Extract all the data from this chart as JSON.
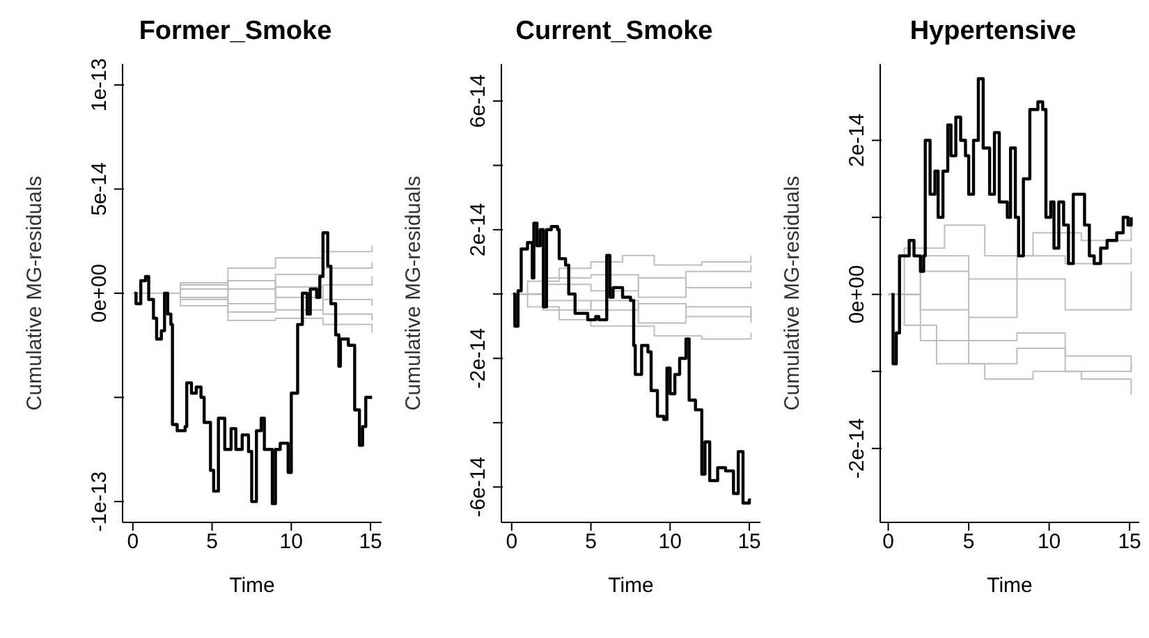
{
  "chart_data": [
    {
      "type": "step",
      "title": "Former_Smoke",
      "xlabel": "Time",
      "ylabel": "Cumulative MG-residuals",
      "xlim": [
        -0.65,
        15.7
      ],
      "xticks": [
        0,
        5,
        10,
        15
      ],
      "ylim": [
        -1.1e-13,
        1.1e-13
      ],
      "yticks": [
        {
          "value": 1e-13,
          "label": "1e-13"
        },
        {
          "value": 5e-14,
          "label": "5e-14"
        },
        {
          "value": 0,
          "label": "0e+00"
        },
        {
          "value": -5e-14,
          "label": null
        },
        {
          "value": -1e-13,
          "label": "-1e-13"
        }
      ],
      "series": [
        {
          "color": "#bebebe",
          "x": [
            0,
            3,
            6,
            9,
            12,
            15.1
          ],
          "values": [
            0,
            5e-15,
            1.2e-14,
            1.7e-14,
            2e-14,
            2.3e-14
          ]
        },
        {
          "color": "#bebebe",
          "x": [
            0,
            3,
            6,
            9,
            12,
            15.1
          ],
          "values": [
            0,
            -6e-15,
            -1.3e-14,
            -1.2e-14,
            -1.5e-14,
            -1.9e-14
          ]
        },
        {
          "color": "#bebebe",
          "x": [
            0,
            3,
            6,
            9,
            12,
            15.1
          ],
          "values": [
            0,
            2e-15,
            6e-15,
            -2e-15,
            4e-15,
            8e-15
          ]
        },
        {
          "color": "#bebebe",
          "x": [
            0,
            3,
            6,
            9,
            12,
            15.1
          ],
          "values": [
            0,
            -3e-15,
            2e-15,
            9e-15,
            1.2e-14,
            1.5e-14
          ]
        },
        {
          "color": "#bebebe",
          "x": [
            0,
            3,
            6,
            9,
            12,
            15.1
          ],
          "values": [
            0,
            4e-15,
            -5e-15,
            -8e-15,
            -3e-15,
            -6e-15
          ]
        },
        {
          "color": "#bebebe",
          "x": [
            0,
            3,
            6,
            9,
            12,
            15.1
          ],
          "values": [
            0,
            -2e-15,
            -9e-15,
            3e-15,
            -1e-14,
            -1.3e-14
          ]
        },
        {
          "color": "#000000",
          "x": [
            0.1,
            0.2,
            0.5,
            0.8,
            1.0,
            1.3,
            1.5,
            1.8,
            2.0,
            2.2,
            2.4,
            2.5,
            2.8,
            3.3,
            3.4,
            3.7,
            4.0,
            4.3,
            4.5,
            4.9,
            5.1,
            5.4,
            5.8,
            6.2,
            6.5,
            6.9,
            7.3,
            7.5,
            7.8,
            8.1,
            8.3,
            8.8,
            9.0,
            9.3,
            9.8,
            10.0,
            10.4,
            10.7,
            11.0,
            11.2,
            11.6,
            11.8,
            12.0,
            12.3,
            12.5,
            12.8,
            13.0,
            13.1,
            13.6,
            14.0,
            14.3,
            14.5,
            14.7,
            15.1
          ],
          "values": [
            0,
            -5e-15,
            6e-15,
            8e-15,
            -3e-15,
            -1.2e-14,
            -2.2e-14,
            -1.8e-14,
            0,
            -1e-14,
            -1.5e-14,
            -6.3e-14,
            -6.6e-14,
            -6.4e-14,
            -4.3e-14,
            -4.8e-14,
            -4.5e-14,
            -5e-14,
            -6.2e-14,
            -8.5e-14,
            -9.5e-14,
            -6e-14,
            -7.5e-14,
            -6.5e-14,
            -7.5e-14,
            -6.8e-14,
            -7.6e-14,
            -1e-13,
            -6.6e-14,
            -6e-14,
            -7.5e-14,
            -1.01e-13,
            -7.5e-14,
            -7.2e-14,
            -8.6e-14,
            -4.8e-14,
            -1.5e-14,
            0,
            -1e-14,
            2e-15,
            -2e-15,
            8e-15,
            2.9e-14,
            1.3e-14,
            -5e-15,
            -2e-14,
            -3.5e-14,
            -2.2e-14,
            -2.5e-14,
            -5.6e-14,
            -7.3e-14,
            -6.4e-14,
            -5e-14,
            -5e-14
          ]
        }
      ]
    },
    {
      "type": "step",
      "title": "Current_Smoke",
      "xlabel": "Time",
      "ylabel": "Cumulative MG-residuals",
      "xlim": [
        -0.65,
        15.7
      ],
      "xticks": [
        0,
        5,
        10,
        15
      ],
      "ylim": [
        -7.1e-14,
        7.15e-14
      ],
      "yticks": [
        {
          "value": 6e-14,
          "label": "6e-14"
        },
        {
          "value": 4e-14,
          "label": null
        },
        {
          "value": 2e-14,
          "label": "2e-14"
        },
        {
          "value": 0,
          "label": null
        },
        {
          "value": -2e-14,
          "label": "-2e-14"
        },
        {
          "value": -4e-14,
          "label": null
        },
        {
          "value": -6e-14,
          "label": "-6e-14"
        }
      ],
      "series": [
        {
          "color": "#bebebe",
          "x": [
            0,
            1,
            3,
            5,
            7,
            9,
            12,
            15.1
          ],
          "values": [
            0,
            4e-15,
            8e-15,
            1e-14,
            1.2e-14,
            9e-15,
            1e-14,
            1.2e-14
          ]
        },
        {
          "color": "#bebebe",
          "x": [
            0,
            1,
            3,
            5,
            7,
            9,
            12,
            15.1
          ],
          "values": [
            0,
            -4e-15,
            -8e-15,
            -1e-14,
            -1e-14,
            -1.3e-14,
            -1.4e-14,
            -1.2e-14
          ]
        },
        {
          "color": "#bebebe",
          "x": [
            0,
            2,
            5,
            8,
            11,
            15.1
          ],
          "values": [
            0,
            3e-15,
            1e-15,
            5e-15,
            2e-15,
            4e-15
          ]
        },
        {
          "color": "#bebebe",
          "x": [
            0,
            2,
            5,
            8,
            11,
            15.1
          ],
          "values": [
            0,
            -2e-15,
            -5e-15,
            -3e-15,
            -7e-15,
            -5e-15
          ]
        },
        {
          "color": "#bebebe",
          "x": [
            0,
            2,
            5,
            8,
            11,
            15.1
          ],
          "values": [
            0,
            5e-15,
            6e-15,
            -1e-15,
            7e-15,
            9e-15
          ]
        },
        {
          "color": "#bebebe",
          "x": [
            0,
            2,
            5,
            8,
            11,
            15.1
          ],
          "values": [
            0,
            -5e-15,
            -2e-15,
            -9e-15,
            -4e-15,
            -9e-15
          ]
        },
        {
          "color": "#000000",
          "x": [
            0.1,
            0.2,
            0.4,
            0.6,
            1.0,
            1.3,
            1.4,
            1.6,
            1.8,
            2.0,
            2.2,
            2.5,
            2.9,
            3.0,
            3.4,
            3.6,
            4.0,
            4.8,
            5.3,
            5.5,
            6.0,
            6.2,
            6.4,
            7.0,
            7.5,
            7.7,
            7.8,
            8.2,
            8.6,
            8.8,
            9.2,
            9.6,
            9.8,
            10.0,
            10.3,
            10.6,
            11.0,
            11.2,
            11.6,
            12.0,
            12.2,
            12.5,
            13.0,
            13.5,
            14.0,
            14.3,
            14.6,
            15.0,
            15.1
          ],
          "values": [
            0,
            -1e-14,
            1e-15,
            1.4e-14,
            1.6e-14,
            5e-15,
            2.2e-14,
            1.5e-14,
            2e-14,
            -4e-15,
            2e-14,
            2.1e-14,
            2e-14,
            1.1e-14,
            9e-15,
            0,
            -6e-15,
            -8e-15,
            -7e-15,
            -8e-15,
            1.2e-14,
            -1e-15,
            2e-15,
            -1e-15,
            -2e-15,
            -1.6e-14,
            -2.5e-14,
            -1.6e-14,
            -1.8e-14,
            -3e-14,
            -3.8e-14,
            -3.9e-14,
            -2.3e-14,
            -3.1e-14,
            -2.5e-14,
            -2e-14,
            -1.4e-14,
            -3.3e-14,
            -3.6e-14,
            -5.6e-14,
            -4.6e-14,
            -5.8e-14,
            -5.4e-14,
            -5.5e-14,
            -6.2e-14,
            -4.9e-14,
            -6.5e-14,
            -6.4e-14,
            -6.4e-14
          ]
        }
      ]
    },
    {
      "type": "step",
      "title": "Hypertensive",
      "xlabel": "Time",
      "ylabel": "Cumulative MG-residuals",
      "xlim": [
        -0.5,
        15.6
      ],
      "xticks": [
        0,
        5,
        10,
        15
      ],
      "ylim": [
        -2.96e-14,
        2.99e-14
      ],
      "yticks": [
        {
          "value": 2e-14,
          "label": "2e-14"
        },
        {
          "value": 1e-14,
          "label": null
        },
        {
          "value": 0,
          "label": "0e+00"
        },
        {
          "value": -1e-14,
          "label": null
        },
        {
          "value": -2e-14,
          "label": "-2e-14"
        }
      ],
      "series": [
        {
          "color": "#bebebe",
          "x": [
            0,
            1,
            3.5,
            6,
            9,
            12,
            15.1
          ],
          "values": [
            0,
            6e-15,
            9e-15,
            5e-15,
            8e-15,
            7e-15,
            9e-15
          ]
        },
        {
          "color": "#bebebe",
          "x": [
            0,
            1,
            3,
            6,
            9,
            12,
            15.1
          ],
          "values": [
            0,
            -4e-15,
            -9e-15,
            -1.1e-14,
            -1e-14,
            -1.1e-14,
            -1.3e-14
          ]
        },
        {
          "color": "#bebebe",
          "x": [
            0,
            2,
            5,
            8,
            11,
            15.1
          ],
          "values": [
            0,
            3e-15,
            -3e-15,
            2e-15,
            -2e-15,
            3e-15
          ]
        },
        {
          "color": "#bebebe",
          "x": [
            0,
            2,
            5,
            8,
            11,
            15.1
          ],
          "values": [
            0,
            -2e-15,
            -6e-15,
            -5e-15,
            -8e-15,
            -1e-14
          ]
        },
        {
          "color": "#bebebe",
          "x": [
            0,
            2,
            5,
            8,
            11,
            15.1
          ],
          "values": [
            0,
            5e-15,
            2e-15,
            5e-15,
            4e-15,
            6e-15
          ]
        },
        {
          "color": "#bebebe",
          "x": [
            0,
            2,
            5,
            8,
            11,
            15.1
          ],
          "values": [
            0,
            -6e-15,
            -9e-15,
            -7e-15,
            -1e-14,
            -9e-15
          ]
        },
        {
          "color": "#000000",
          "x": [
            0.2,
            0.3,
            0.5,
            0.7,
            1.0,
            1.3,
            1.6,
            2.0,
            2.2,
            2.3,
            2.6,
            2.9,
            3.1,
            3.4,
            3.7,
            3.9,
            4.2,
            4.5,
            4.8,
            5.0,
            5.3,
            5.6,
            5.9,
            6.3,
            6.6,
            6.9,
            7.4,
            7.6,
            7.9,
            8.1,
            8.4,
            8.8,
            9.3,
            9.6,
            9.8,
            10.1,
            10.3,
            10.6,
            10.9,
            11.2,
            11.5,
            12.0,
            12.2,
            12.5,
            12.8,
            13.2,
            13.6,
            14.2,
            14.6,
            14.9,
            15.1
          ],
          "values": [
            0,
            -9e-15,
            -5e-15,
            5e-15,
            5e-15,
            7e-15,
            5e-15,
            3e-15,
            5e-15,
            2e-14,
            1.3e-14,
            1.6e-14,
            1e-14,
            1.6e-14,
            2.2e-14,
            1.8e-14,
            2.3e-14,
            2e-14,
            1.8e-14,
            1.3e-14,
            2e-14,
            2.8e-14,
            1.9e-14,
            1.3e-14,
            2.1e-14,
            1.2e-14,
            1e-14,
            1.9e-14,
            1e-14,
            5e-15,
            1.5e-14,
            2.4e-14,
            2.5e-14,
            2.4e-14,
            1e-14,
            1.2e-14,
            6e-15,
            1.2e-14,
            9e-15,
            4e-15,
            1.3e-14,
            1.3e-14,
            9e-15,
            5e-15,
            4e-15,
            6e-15,
            7e-15,
            8e-15,
            1e-14,
            9e-15,
            1e-14
          ]
        }
      ]
    }
  ]
}
